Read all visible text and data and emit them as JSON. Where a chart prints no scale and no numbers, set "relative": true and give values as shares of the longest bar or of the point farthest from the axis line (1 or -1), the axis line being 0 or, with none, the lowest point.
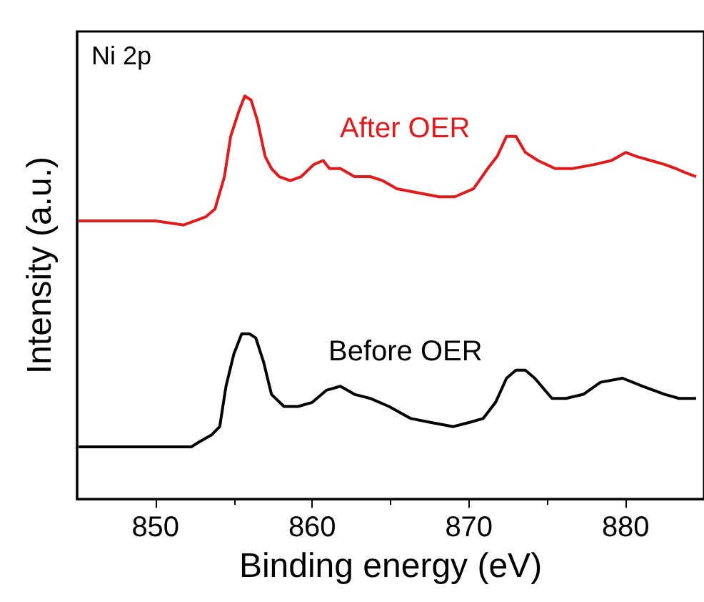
{
  "chart_data": {
    "type": "line",
    "relative": true,
    "xlabel": "Binding energy (eV)",
    "ylabel": "Intensity (a.u.)",
    "annotations": [
      "Ni 2p"
    ],
    "xlim": [
      845,
      885
    ],
    "xticks": [
      850,
      860,
      870,
      880
    ],
    "tick_labels": "x",
    "marker": "none",
    "line_style": "solid",
    "series": [
      {
        "name": "After OER",
        "color": "#e31a1c",
        "x": [
          845.1,
          846.4,
          848.2,
          850.0,
          851.8,
          853.2,
          853.8,
          854.4,
          854.8,
          855.3,
          855.7,
          856.1,
          856.5,
          857.0,
          857.4,
          857.9,
          858.6,
          859.3,
          860.1,
          860.7,
          861.1,
          861.8,
          862.7,
          863.7,
          864.5,
          865.4,
          866.7,
          868.1,
          869.1,
          870.3,
          871.2,
          871.8,
          872.4,
          873.0,
          873.6,
          874.4,
          875.5,
          876.6,
          878.0,
          879.1,
          880.0,
          880.7,
          881.6,
          882.5,
          883.2,
          883.8,
          884.5
        ],
        "values": [
          0.69,
          0.69,
          0.69,
          0.69,
          0.68,
          0.7,
          0.72,
          0.8,
          0.9,
          0.96,
          1.0,
          0.99,
          0.94,
          0.85,
          0.82,
          0.8,
          0.79,
          0.8,
          0.83,
          0.84,
          0.82,
          0.82,
          0.8,
          0.8,
          0.79,
          0.77,
          0.76,
          0.75,
          0.75,
          0.77,
          0.82,
          0.85,
          0.9,
          0.9,
          0.86,
          0.84,
          0.82,
          0.82,
          0.83,
          0.84,
          0.86,
          0.85,
          0.84,
          0.83,
          0.82,
          0.81,
          0.8
        ]
      },
      {
        "name": "Before OER",
        "color": "#000000",
        "x": [
          845.1,
          846.4,
          848.2,
          850.0,
          852.3,
          852.7,
          853.6,
          854.1,
          854.5,
          855.0,
          855.5,
          856.0,
          856.4,
          856.9,
          857.4,
          858.2,
          859.1,
          860.0,
          860.9,
          861.8,
          862.7,
          863.7,
          864.9,
          866.3,
          867.6,
          869.0,
          870.0,
          870.9,
          871.7,
          872.4,
          873.0,
          873.6,
          874.2,
          875.3,
          876.2,
          877.3,
          878.4,
          879.8,
          881.1,
          882.5,
          883.4,
          884.5
        ],
        "values": [
          0.13,
          0.13,
          0.13,
          0.13,
          0.13,
          0.14,
          0.16,
          0.18,
          0.28,
          0.36,
          0.41,
          0.41,
          0.4,
          0.34,
          0.26,
          0.23,
          0.23,
          0.24,
          0.27,
          0.28,
          0.26,
          0.25,
          0.23,
          0.2,
          0.19,
          0.18,
          0.19,
          0.2,
          0.24,
          0.3,
          0.32,
          0.32,
          0.3,
          0.25,
          0.25,
          0.26,
          0.29,
          0.3,
          0.28,
          0.26,
          0.25,
          0.25
        ]
      }
    ]
  }
}
